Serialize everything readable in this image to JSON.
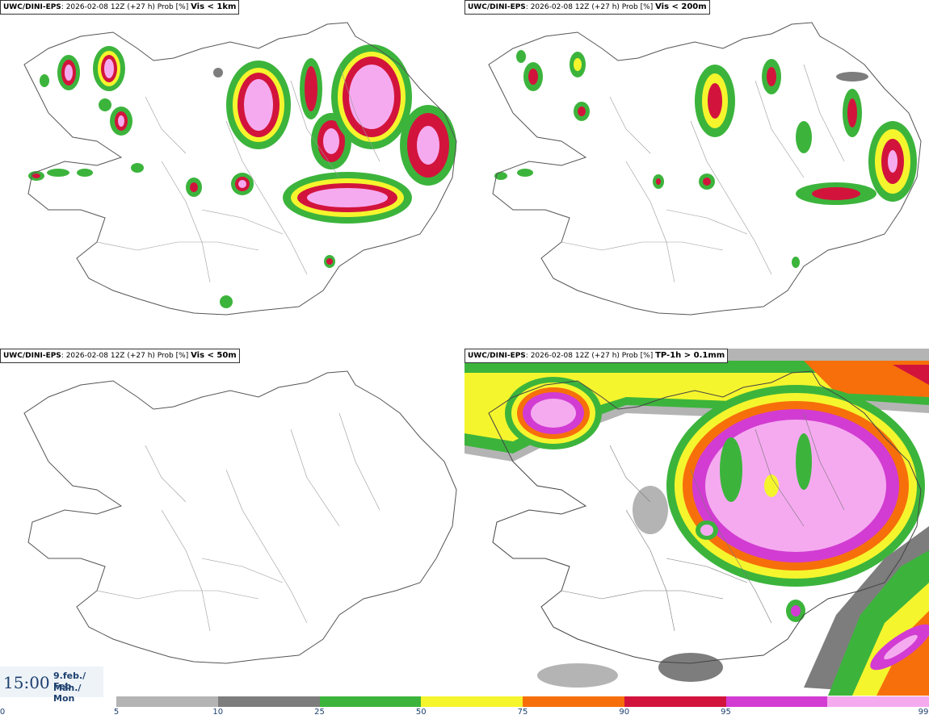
{
  "panels": [
    {
      "model": "UWC/DINI-EPS",
      "run": ": 2026-02-08 12Z (+27 h) Prob [%]",
      "variable": "Vis < 1km"
    },
    {
      "model": "UWC/DINI-EPS",
      "run": ": 2026-02-08 12Z (+27 h) Prob [%]",
      "variable": "Vis < 200m"
    },
    {
      "model": "UWC/DINI-EPS",
      "run": ": 2026-02-08 12Z (+27 h) Prob [%]",
      "variable": "Vis < 50m"
    },
    {
      "model": "UWC/DINI-EPS",
      "run": ": 2026-02-08 12Z (+27 h) Prob [%]",
      "variable": "TP-1h > 0.1mm"
    }
  ],
  "valid_time": {
    "time": "15:00",
    "date_line1": "9.feb./ Feb",
    "date_line2": "Mán./ Mon"
  },
  "colorbar": {
    "ticks": [
      "0",
      "5",
      "10",
      "25",
      "50",
      "75",
      "90",
      "95",
      "99"
    ],
    "colors": [
      "#b4b4b4",
      "#7d7d7d",
      "#3cb43c",
      "#f5f52d",
      "#f76f0a",
      "#d2143c",
      "#d23cd2",
      "#f5aaf0"
    ]
  }
}
